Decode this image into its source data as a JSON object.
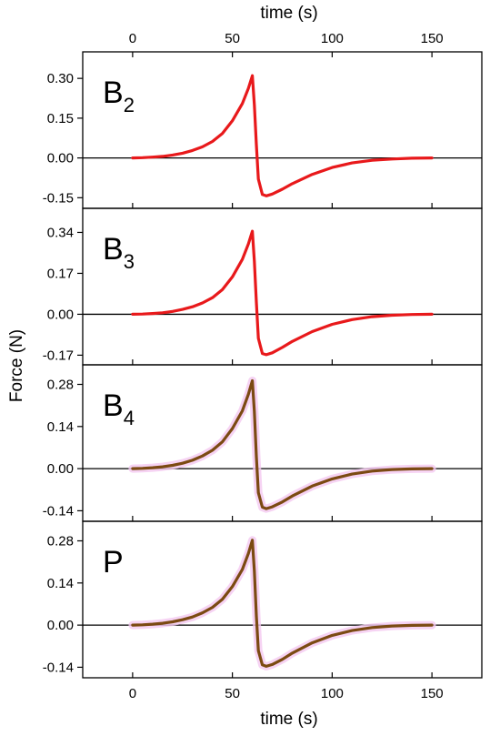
{
  "chart_data": {
    "type": "line",
    "x_axis": {
      "label": "time (s)",
      "ticks": [
        0,
        50,
        100,
        150
      ],
      "range": [
        -25,
        175
      ],
      "shown_on": [
        "top",
        "bottom"
      ]
    },
    "y_axis_label": "Force (N)",
    "colors": {
      "red": "#e8191b",
      "brown": "#7b4a12",
      "halo": "#f4c8f0",
      "zero_line": "#000000"
    },
    "panels": [
      {
        "label_main": "B",
        "label_sub": "2",
        "ylim": [
          -0.19,
          0.4
        ],
        "yticks": [
          "0.30",
          "0.15",
          "0.00",
          "-0.15"
        ],
        "ytick_values": [
          0.3,
          0.15,
          0.0,
          -0.15
        ],
        "color": "red",
        "halo": false,
        "series": {
          "x": [
            0,
            5,
            10,
            15,
            20,
            25,
            30,
            35,
            40,
            45,
            50,
            55,
            58,
            60,
            61,
            62,
            63,
            65,
            67,
            70,
            75,
            80,
            90,
            100,
            110,
            120,
            130,
            140,
            150
          ],
          "y": [
            0.0,
            0.001,
            0.003,
            0.006,
            0.011,
            0.018,
            0.028,
            0.042,
            0.062,
            0.092,
            0.14,
            0.205,
            0.262,
            0.31,
            0.2,
            0.05,
            -0.08,
            -0.138,
            -0.143,
            -0.136,
            -0.118,
            -0.097,
            -0.062,
            -0.036,
            -0.019,
            -0.009,
            -0.004,
            -0.001,
            0.0
          ]
        }
      },
      {
        "label_main": "B",
        "label_sub": "3",
        "ylim": [
          -0.21,
          0.44
        ],
        "yticks": [
          "0.34",
          "0.17",
          "0.00",
          "-0.17"
        ],
        "ytick_values": [
          0.34,
          0.17,
          0.0,
          -0.17
        ],
        "color": "red",
        "halo": false,
        "series": {
          "x": [
            0,
            5,
            10,
            15,
            20,
            25,
            30,
            35,
            40,
            45,
            50,
            55,
            58,
            60,
            61,
            62,
            63,
            65,
            67,
            70,
            75,
            80,
            90,
            100,
            110,
            120,
            130,
            140,
            150
          ],
          "y": [
            0.0,
            0.001,
            0.003,
            0.006,
            0.012,
            0.02,
            0.031,
            0.047,
            0.069,
            0.102,
            0.155,
            0.228,
            0.292,
            0.345,
            0.22,
            0.05,
            -0.1,
            -0.163,
            -0.168,
            -0.16,
            -0.138,
            -0.113,
            -0.072,
            -0.042,
            -0.022,
            -0.01,
            -0.004,
            -0.001,
            0.0
          ]
        }
      },
      {
        "label_main": "B",
        "label_sub": "4",
        "ylim": [
          -0.175,
          0.345
        ],
        "yticks": [
          "0.28",
          "0.14",
          "0.00",
          "-0.14"
        ],
        "ytick_values": [
          0.28,
          0.14,
          0.0,
          -0.14
        ],
        "color": "brown",
        "halo": true,
        "series": {
          "x": [
            0,
            5,
            10,
            15,
            20,
            25,
            30,
            35,
            40,
            45,
            50,
            55,
            58,
            60,
            61,
            62,
            63,
            65,
            67,
            70,
            75,
            80,
            90,
            100,
            110,
            120,
            130,
            140,
            150
          ],
          "y": [
            0.0,
            0.001,
            0.003,
            0.006,
            0.011,
            0.018,
            0.028,
            0.042,
            0.061,
            0.089,
            0.133,
            0.192,
            0.247,
            0.292,
            0.19,
            0.04,
            -0.08,
            -0.128,
            -0.133,
            -0.127,
            -0.111,
            -0.091,
            -0.058,
            -0.034,
            -0.018,
            -0.008,
            -0.003,
            -0.001,
            0.0
          ]
        }
      },
      {
        "label_main": "P",
        "label_sub": "",
        "ylim": [
          -0.175,
          0.345
        ],
        "yticks": [
          "0.28",
          "0.14",
          "0.00",
          "-0.14"
        ],
        "ytick_values": [
          0.28,
          0.14,
          0.0,
          -0.14
        ],
        "color": "brown",
        "halo": true,
        "series": {
          "x": [
            0,
            5,
            10,
            15,
            20,
            25,
            30,
            35,
            40,
            45,
            50,
            55,
            58,
            60,
            61,
            62,
            63,
            65,
            67,
            70,
            75,
            80,
            90,
            100,
            110,
            120,
            130,
            140,
            150
          ],
          "y": [
            0.0,
            0.001,
            0.003,
            0.006,
            0.011,
            0.018,
            0.027,
            0.041,
            0.059,
            0.086,
            0.128,
            0.185,
            0.238,
            0.282,
            0.18,
            0.03,
            -0.085,
            -0.132,
            -0.137,
            -0.131,
            -0.114,
            -0.093,
            -0.059,
            -0.034,
            -0.018,
            -0.008,
            -0.003,
            -0.001,
            0.0
          ]
        }
      }
    ]
  }
}
